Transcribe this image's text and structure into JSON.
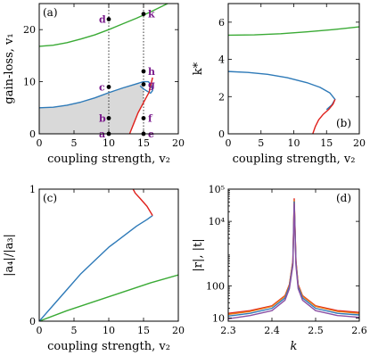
{
  "colors": {
    "green": "#3aaa35",
    "blue": "#2e7ab8",
    "red": "#e0201b",
    "purple": "#8a4fa3",
    "orange": "#e87a1a",
    "shade": "#d9d9d9",
    "point_label": "#7a1a8c"
  },
  "chart_data": [
    {
      "id": "a",
      "panel_label": "(a)",
      "type": "line",
      "xlabel": "coupling strength, v₂",
      "ylabel": "gain-loss, v₁",
      "xlim": [
        0,
        20
      ],
      "ylim": [
        0,
        25
      ],
      "xticks": [
        "0",
        "5",
        "10",
        "15",
        "20"
      ],
      "yticks": [
        "0",
        "10",
        "20"
      ],
      "grid": false,
      "shaded_region": "below blue curve",
      "series": [
        {
          "color": "green",
          "x": [
            0,
            2,
            4,
            6,
            8,
            10,
            12,
            14,
            16,
            18,
            20
          ],
          "y": [
            16.8,
            17.0,
            17.5,
            18.2,
            19.0,
            20.0,
            21.1,
            22.2,
            23.4,
            24.7,
            26.0
          ]
        },
        {
          "color": "blue",
          "x": [
            0,
            2,
            4,
            6,
            8,
            10,
            12,
            14,
            15,
            15.7,
            16.1,
            16.3,
            16.0,
            15.0,
            14.5
          ],
          "y": [
            5.0,
            5.1,
            5.5,
            6.1,
            6.9,
            7.9,
            8.8,
            9.6,
            10.0,
            10.0,
            9.4,
            8.3,
            7.8,
            8.6,
            9.2
          ]
        },
        {
          "color": "red",
          "x": [
            13.0,
            13.6,
            14.2,
            15.0,
            15.8,
            16.3
          ],
          "y": [
            0,
            2.0,
            4.0,
            6.0,
            8.0,
            10.8
          ]
        }
      ],
      "vlines_dotted": [
        10,
        15
      ],
      "points": [
        {
          "label": "a",
          "x": 10,
          "y": 0
        },
        {
          "label": "b",
          "x": 10,
          "y": 3
        },
        {
          "label": "c",
          "x": 10,
          "y": 9
        },
        {
          "label": "d",
          "x": 10,
          "y": 22
        },
        {
          "label": "e",
          "x": 15,
          "y": 0
        },
        {
          "label": "f",
          "x": 15,
          "y": 3
        },
        {
          "label": "g",
          "x": 15,
          "y": 9.5
        },
        {
          "label": "h",
          "x": 15,
          "y": 12
        },
        {
          "label": "k",
          "x": 15,
          "y": 23
        }
      ]
    },
    {
      "id": "b",
      "panel_label": "(b)",
      "type": "line",
      "xlabel": "coupling strength, v₂",
      "ylabel": "k*",
      "xlim": [
        0,
        20
      ],
      "ylim": [
        0,
        7
      ],
      "xticks": [
        "0",
        "5",
        "10",
        "15",
        "20"
      ],
      "yticks": [
        "0",
        "2",
        "4",
        "6"
      ],
      "series": [
        {
          "color": "green",
          "x": [
            0,
            4,
            8,
            12,
            16,
            20
          ],
          "y": [
            5.3,
            5.32,
            5.38,
            5.48,
            5.6,
            5.75
          ]
        },
        {
          "color": "blue",
          "x": [
            0,
            3,
            6,
            9,
            12,
            14,
            15.5,
            16.3,
            15.8,
            15.0
          ],
          "y": [
            3.35,
            3.3,
            3.2,
            3.02,
            2.75,
            2.5,
            2.2,
            1.85,
            1.55,
            1.3
          ]
        },
        {
          "color": "red",
          "x": [
            12.9,
            13.3,
            13.8,
            14.5,
            15.3,
            16.0,
            16.3
          ],
          "y": [
            0,
            0.4,
            0.75,
            1.05,
            1.3,
            1.6,
            1.85
          ]
        }
      ]
    },
    {
      "id": "c",
      "panel_label": "(c)",
      "type": "line",
      "xlabel": "coupling strength, v₂",
      "ylabel": "|a₄|/|a₃|",
      "xlim": [
        0,
        20
      ],
      "ylim": [
        0,
        1
      ],
      "xticks": [
        "0",
        "5",
        "10",
        "15",
        "20"
      ],
      "yticks": [
        "0",
        "1"
      ],
      "series": [
        {
          "color": "green",
          "x": [
            0,
            4,
            8,
            12,
            16,
            20
          ],
          "y": [
            0,
            0.08,
            0.15,
            0.22,
            0.29,
            0.35
          ]
        },
        {
          "color": "blue",
          "x": [
            0,
            2,
            4,
            6,
            8,
            10,
            12,
            14,
            15.5,
            16.3
          ],
          "y": [
            0,
            0.12,
            0.24,
            0.36,
            0.46,
            0.56,
            0.64,
            0.72,
            0.77,
            0.8
          ]
        },
        {
          "color": "red",
          "x": [
            16.3,
            15.5,
            14.5,
            13.8,
            13.5
          ],
          "y": [
            0.8,
            0.87,
            0.93,
            0.97,
            1.0
          ]
        }
      ]
    },
    {
      "id": "d",
      "panel_label": "(d)",
      "type": "line",
      "xlabel": "k",
      "ylabel": "|r|, |t|",
      "xlim": [
        2.3,
        2.6
      ],
      "ylim": [
        8,
        100000
      ],
      "yscale": "log",
      "xticks": [
        "2.3",
        "2.4",
        "2.5",
        "2.6"
      ],
      "yticks": [
        "10",
        "100",
        "10⁴",
        "10⁵"
      ],
      "series": [
        {
          "color": "red",
          "x": [
            2.3,
            2.35,
            2.4,
            2.43,
            2.44,
            2.448,
            2.451,
            2.455,
            2.46,
            2.47,
            2.5,
            2.55,
            2.6
          ],
          "y": [
            14,
            17,
            24,
            50,
            110,
            600,
            50000,
            600,
            110,
            50,
            24,
            17,
            15
          ]
        },
        {
          "color": "orange",
          "x": [
            2.3,
            2.35,
            2.4,
            2.43,
            2.44,
            2.448,
            2.451,
            2.455,
            2.46,
            2.47,
            2.5,
            2.55,
            2.6
          ],
          "y": [
            13,
            16,
            23,
            48,
            105,
            580,
            45000,
            580,
            105,
            48,
            23,
            16,
            14
          ]
        },
        {
          "color": "blue",
          "x": [
            2.3,
            2.35,
            2.4,
            2.43,
            2.44,
            2.448,
            2.451,
            2.455,
            2.46,
            2.47,
            2.5,
            2.55,
            2.6
          ],
          "y": [
            11.5,
            14,
            20,
            42,
            95,
            500,
            40000,
            500,
            95,
            42,
            20,
            14,
            12.5
          ]
        },
        {
          "color": "purple",
          "x": [
            2.3,
            2.35,
            2.4,
            2.43,
            2.44,
            2.448,
            2.451,
            2.455,
            2.46,
            2.47,
            2.5,
            2.55,
            2.6
          ],
          "y": [
            9.5,
            12,
            17,
            36,
            82,
            430,
            35000,
            430,
            82,
            36,
            17,
            12,
            10.5
          ]
        }
      ]
    }
  ]
}
